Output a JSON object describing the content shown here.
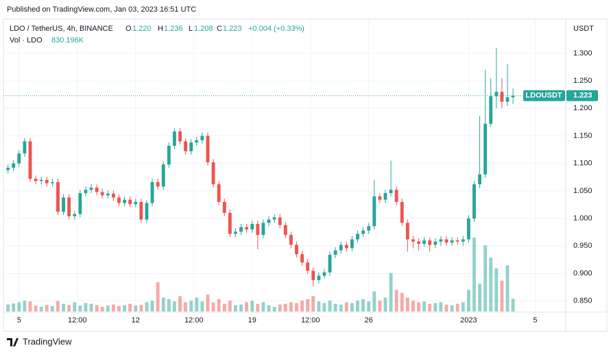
{
  "chart_data": {
    "type": "candlestick",
    "published": "Published on TradingView.com, Jan 03, 2023 16:51 UTC",
    "brand": "TradingView",
    "legend": {
      "symbol": "LDO / TetherUS, 4h, BINANCE",
      "o": "O",
      "open": "1.220",
      "h": "H",
      "high": "1.236",
      "l": "L",
      "low": "1.208",
      "c": "C",
      "close": "1.223",
      "change": "+0.004 (+0.33%)",
      "volume_name": "Vol · LDO",
      "volume_label": "830.196K"
    },
    "y_axis_unit": "USDT",
    "last_label": "LDOUSDT",
    "up_color": "#26a69a",
    "down_color": "#ef5350",
    "grid": true,
    "xlim": [
      -2.2,
      98.5
    ],
    "xticks": [
      {
        "value": 0,
        "label": "5"
      },
      {
        "value": 10.5,
        "label": "12:00"
      },
      {
        "value": 21,
        "label": "12"
      },
      {
        "value": 31.5,
        "label": "12:00"
      },
      {
        "value": 42,
        "label": "19"
      },
      {
        "value": 52.5,
        "label": "12:00"
      },
      {
        "value": 63,
        "label": "26"
      },
      {
        "value": 81,
        "label": "2023"
      },
      {
        "value": 93,
        "label": "5"
      }
    ],
    "ylim": [
      0.831,
      1.362
    ],
    "yticks": [
      {
        "value": 0.85,
        "label": "0.850"
      },
      {
        "value": 0.9,
        "label": "0.900"
      },
      {
        "value": 0.95,
        "label": "0.950"
      },
      {
        "value": 1.0,
        "label": "1.000"
      },
      {
        "value": 1.05,
        "label": "1.050"
      },
      {
        "value": 1.1,
        "label": "1.100"
      },
      {
        "value": 1.15,
        "label": "1.150"
      },
      {
        "value": 1.2,
        "label": "1.200"
      },
      {
        "value": 1.25,
        "label": "1.250"
      },
      {
        "value": 1.3,
        "label": "1.300"
      }
    ],
    "vlim": [
      0,
      19000000
    ],
    "x": [
      -2,
      -1,
      0,
      1,
      2,
      3,
      4,
      5,
      6,
      7,
      8,
      9,
      10,
      11,
      12,
      13,
      14,
      15,
      16,
      17,
      18,
      19,
      20,
      21,
      22,
      23,
      24,
      25,
      26,
      27,
      28,
      29,
      30,
      31,
      32,
      33,
      34,
      35,
      36,
      37,
      38,
      39,
      40,
      41,
      42,
      43,
      44,
      45,
      46,
      47,
      48,
      49,
      50,
      51,
      52,
      53,
      54,
      55,
      56,
      57,
      58,
      59,
      60,
      61,
      62,
      63,
      64,
      65,
      66,
      67,
      68,
      69,
      70,
      71,
      72,
      73,
      74,
      75,
      76,
      77,
      78,
      79,
      80,
      81,
      82,
      83,
      84,
      85,
      86,
      87,
      88,
      89
    ],
    "series": [
      {
        "name": "LDO / TetherUS",
        "open": [
          1.088,
          1.092,
          1.1,
          1.118,
          1.14,
          1.072,
          1.068,
          1.07,
          1.064,
          1.066,
          1.012,
          1.038,
          1.004,
          1.008,
          1.046,
          1.052,
          1.056,
          1.048,
          1.042,
          1.045,
          1.038,
          1.028,
          1.034,
          1.026,
          1.03,
          0.998,
          1.028,
          1.066,
          1.058,
          1.098,
          1.132,
          1.158,
          1.14,
          1.122,
          1.138,
          1.142,
          1.15,
          1.102,
          1.062,
          1.03,
          1.01,
          0.972,
          0.976,
          0.984,
          0.98,
          0.99,
          0.97,
          0.992,
          0.998,
          1.002,
          0.988,
          0.97,
          0.952,
          0.935,
          0.92,
          0.905,
          0.888,
          0.896,
          0.902,
          0.934,
          0.942,
          0.952,
          0.946,
          0.962,
          0.972,
          0.978,
          0.986,
          1.04,
          1.034,
          1.046,
          1.052,
          1.03,
          0.992,
          0.962,
          0.958,
          0.954,
          0.96,
          0.952,
          0.958,
          0.962,
          0.956,
          0.96,
          0.958,
          0.962,
          1.0,
          1.062,
          1.08,
          1.172,
          1.222,
          1.23,
          1.212,
          1.22
        ],
        "high": [
          1.098,
          1.106,
          1.124,
          1.146,
          1.146,
          1.078,
          1.076,
          1.076,
          1.072,
          1.072,
          1.044,
          1.044,
          1.014,
          1.052,
          1.058,
          1.062,
          1.062,
          1.054,
          1.051,
          1.051,
          1.044,
          1.04,
          1.04,
          1.036,
          1.036,
          1.034,
          1.072,
          1.072,
          1.104,
          1.138,
          1.164,
          1.164,
          1.146,
          1.144,
          1.148,
          1.156,
          1.156,
          1.108,
          1.068,
          1.036,
          1.016,
          0.982,
          0.99,
          0.99,
          0.996,
          0.996,
          0.998,
          1.004,
          1.008,
          1.008,
          0.994,
          0.976,
          0.958,
          0.941,
          0.926,
          0.911,
          0.902,
          0.908,
          0.94,
          0.948,
          0.958,
          0.958,
          0.968,
          0.978,
          0.984,
          0.992,
          1.07,
          1.046,
          1.052,
          1.105,
          1.058,
          1.036,
          0.998,
          0.968,
          0.964,
          0.966,
          0.966,
          0.964,
          0.968,
          0.968,
          0.966,
          0.966,
          0.968,
          1.006,
          1.068,
          1.186,
          1.27,
          1.255,
          1.31,
          1.255,
          1.28,
          1.236
        ],
        "low": [
          1.082,
          1.086,
          1.094,
          1.112,
          1.066,
          1.062,
          1.062,
          1.058,
          1.058,
          1.006,
          1.006,
          0.998,
          0.998,
          1.002,
          1.04,
          1.046,
          1.042,
          1.036,
          1.036,
          1.032,
          1.022,
          1.022,
          1.02,
          1.02,
          0.992,
          0.992,
          1.022,
          1.052,
          1.052,
          1.092,
          1.126,
          1.134,
          1.116,
          1.116,
          1.132,
          1.136,
          1.096,
          1.056,
          1.024,
          1.004,
          0.966,
          0.966,
          0.97,
          0.974,
          0.974,
          0.944,
          0.964,
          0.986,
          0.992,
          0.982,
          0.964,
          0.946,
          0.929,
          0.914,
          0.899,
          0.876,
          0.882,
          0.89,
          0.896,
          0.928,
          0.936,
          0.94,
          0.94,
          0.956,
          0.966,
          0.972,
          0.98,
          1.028,
          1.028,
          1.04,
          1.024,
          0.986,
          0.94,
          0.946,
          0.942,
          0.948,
          0.94,
          0.946,
          0.95,
          0.95,
          0.95,
          0.952,
          0.95,
          0.956,
          0.994,
          1.055,
          1.074,
          1.166,
          1.2,
          1.2,
          1.204,
          1.208
        ],
        "close": [
          1.092,
          1.1,
          1.118,
          1.14,
          1.072,
          1.068,
          1.07,
          1.064,
          1.066,
          1.012,
          1.038,
          1.004,
          1.008,
          1.046,
          1.052,
          1.056,
          1.048,
          1.042,
          1.045,
          1.038,
          1.028,
          1.034,
          1.026,
          1.03,
          0.998,
          1.028,
          1.066,
          1.058,
          1.098,
          1.132,
          1.158,
          1.14,
          1.122,
          1.138,
          1.142,
          1.15,
          1.102,
          1.062,
          1.03,
          1.01,
          0.972,
          0.976,
          0.984,
          0.98,
          0.99,
          0.97,
          0.992,
          0.998,
          1.002,
          0.988,
          0.97,
          0.952,
          0.935,
          0.92,
          0.905,
          0.888,
          0.896,
          0.902,
          0.934,
          0.942,
          0.952,
          0.946,
          0.962,
          0.972,
          0.978,
          0.986,
          1.04,
          1.034,
          1.046,
          1.052,
          1.03,
          0.992,
          0.962,
          0.958,
          0.954,
          0.96,
          0.952,
          0.958,
          0.962,
          0.956,
          0.96,
          0.958,
          0.962,
          1.0,
          1.062,
          1.08,
          1.172,
          1.222,
          1.23,
          1.212,
          1.22,
          1.223
        ],
        "volume": [
          450000,
          520000,
          600000,
          700000,
          650000,
          380000,
          300000,
          420000,
          350000,
          680000,
          500000,
          420000,
          600000,
          380000,
          550000,
          500000,
          420000,
          300000,
          380000,
          450000,
          350000,
          400000,
          500000,
          380000,
          420000,
          600000,
          700000,
          1900000,
          900000,
          800000,
          650000,
          1000000,
          600000,
          700000,
          900000,
          650000,
          1100000,
          600000,
          800000,
          500000,
          700000,
          400000,
          450000,
          600000,
          700000,
          500000,
          600000,
          400000,
          300000,
          450000,
          500000,
          600000,
          550000,
          700000,
          800000,
          1000000,
          650000,
          550000,
          700000,
          500000,
          450000,
          600000,
          550000,
          700000,
          800000,
          650000,
          1300000,
          700000,
          900000,
          2500000,
          1400000,
          1200000,
          900000,
          700000,
          600000,
          650000,
          500000,
          550000,
          600000,
          450000,
          400000,
          500000,
          600000,
          1400000,
          4800000,
          1800000,
          4300000,
          3500000,
          2800000,
          2000000,
          3000000,
          830196
        ]
      }
    ]
  }
}
